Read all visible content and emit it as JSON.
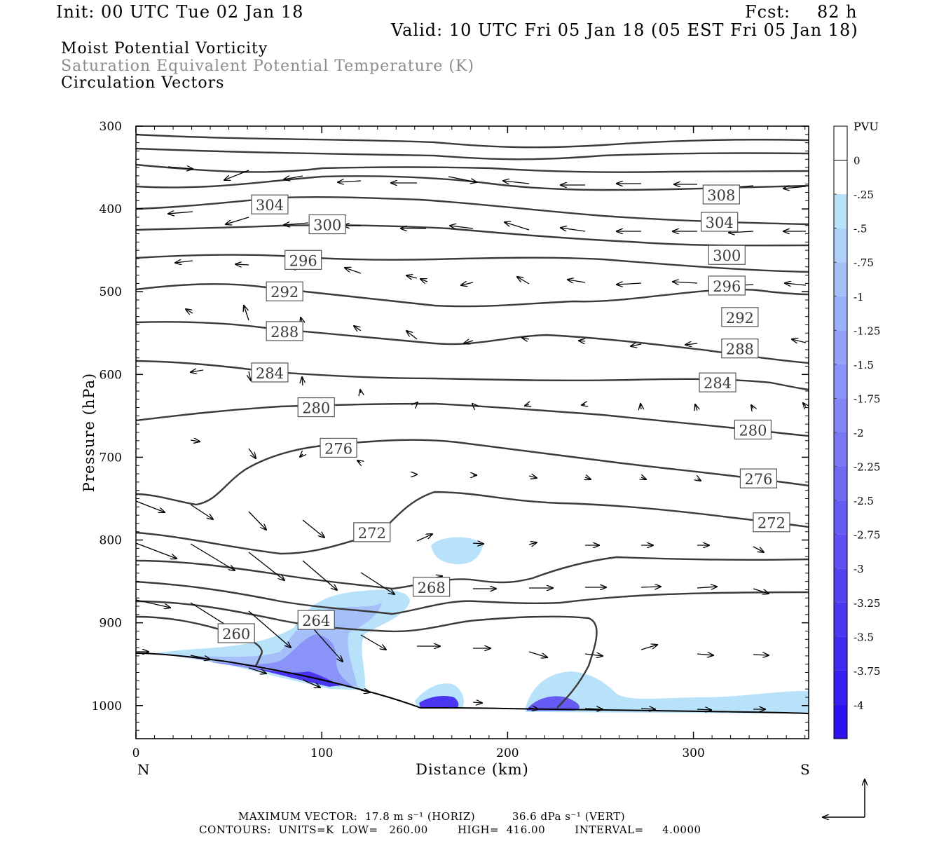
{
  "header": {
    "init": "Init: 00 UTC Tue 02 Jan 18",
    "fcst_label": "Fcst:",
    "fcst_value": "82 h",
    "valid": "Valid: 10 UTC Fri 05 Jan 18 (05 EST Fri 05 Jan 18)"
  },
  "fields": {
    "line1": "Moist Potential Vorticity",
    "line2": "Saturation Equivalent Potential Temperature (K)",
    "line3": "Circulation Vectors"
  },
  "footer": {
    "line1": "MAXIMUM VECTOR:  17.8 m s⁻¹ (HORIZ)          36.6 dPa s⁻¹ (VERT)",
    "line2": "CONTOURS:  UNITS=K  LOW=   260.00        HIGH=  416.00        INTERVAL=     4.0000"
  },
  "colors": {
    "contour": "#3a3a3a",
    "pv_shades": [
      "#ffffff",
      "#ffffff",
      "#b8e2fa",
      "#afd0fa",
      "#a5bff9",
      "#9cb0f9",
      "#93a1f8",
      "#8a93f7",
      "#8285f6",
      "#7977f5",
      "#7069f4",
      "#665cf3",
      "#5d4ff2",
      "#5342f1",
      "#4a36f0",
      "#4029ef",
      "#371def",
      "#2d10ee"
    ]
  },
  "chart_data": {
    "type": "contour",
    "xlabel": "Distance (km)",
    "ylabel": "Pressure (hPa)",
    "xlim": [
      0,
      362
    ],
    "ylim": [
      1040,
      300
    ],
    "x_ticks": [
      0,
      100,
      200,
      300
    ],
    "y_ticks": [
      300,
      400,
      500,
      600,
      700,
      800,
      900,
      1000
    ],
    "x_end_labels": {
      "left": "N",
      "right": "S"
    },
    "colorbar": {
      "title": "PVU",
      "labels": [
        "0",
        "-.25",
        "-.5",
        "-.75",
        "-1",
        "-1.25",
        "-1.5",
        "-1.75",
        "-2",
        "-2.25",
        "-2.5",
        "-2.75",
        "-3",
        "-3.25",
        "-3.5",
        "-3.75",
        "-4"
      ]
    },
    "contour_labels": [
      {
        "x": 72,
        "p": 395,
        "text": "304"
      },
      {
        "x": 103,
        "p": 419,
        "text": "300"
      },
      {
        "x": 314,
        "p": 416,
        "text": "304"
      },
      {
        "x": 315,
        "p": 383,
        "text": "308"
      },
      {
        "x": 90,
        "p": 462,
        "text": "296"
      },
      {
        "x": 80,
        "p": 500,
        "text": "292"
      },
      {
        "x": 80,
        "p": 548,
        "text": "288"
      },
      {
        "x": 72,
        "p": 598,
        "text": "284"
      },
      {
        "x": 97,
        "p": 640,
        "text": "280"
      },
      {
        "x": 109,
        "p": 689,
        "text": "276"
      },
      {
        "x": 127,
        "p": 791,
        "text": "272"
      },
      {
        "x": 159,
        "p": 857,
        "text": "268"
      },
      {
        "x": 97,
        "p": 897,
        "text": "264"
      },
      {
        "x": 54,
        "p": 913,
        "text": "260"
      },
      {
        "x": 318,
        "p": 456,
        "text": "300"
      },
      {
        "x": 318,
        "p": 493,
        "text": "296"
      },
      {
        "x": 325,
        "p": 531,
        "text": "292"
      },
      {
        "x": 325,
        "p": 569,
        "text": "288"
      },
      {
        "x": 313,
        "p": 610,
        "text": "284"
      },
      {
        "x": 332,
        "p": 667,
        "text": "280"
      },
      {
        "x": 335,
        "p": 726,
        "text": "276"
      },
      {
        "x": 342,
        "p": 779,
        "text": "272"
      }
    ]
  }
}
